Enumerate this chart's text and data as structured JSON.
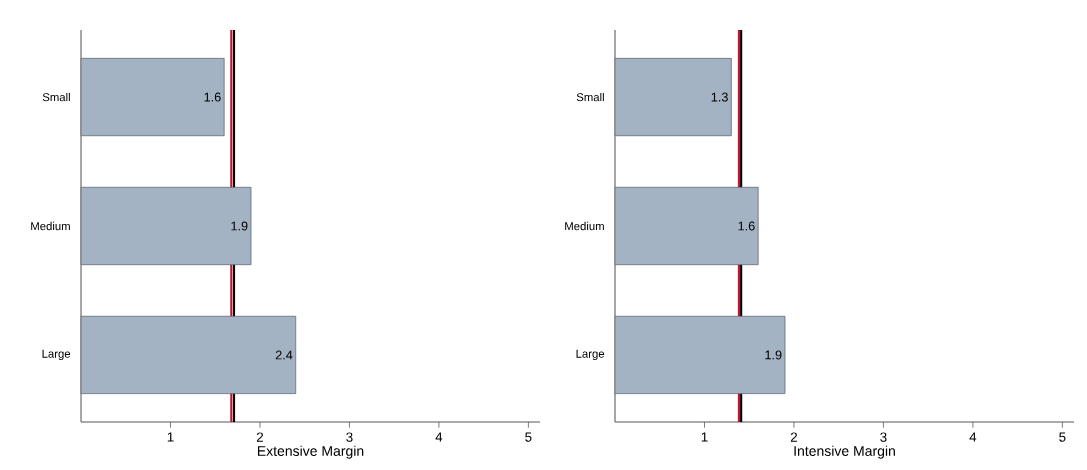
{
  "chart_data": [
    {
      "type": "bar",
      "orientation": "horizontal",
      "categories": [
        "Small",
        "Medium",
        "Large"
      ],
      "values": [
        1.6,
        1.9,
        2.4
      ],
      "color": "#a3b3c3",
      "data_labels": true,
      "xlabel": "Extensive Margin",
      "xlim": [
        0,
        5.13
      ],
      "xticks": [
        1,
        2,
        3,
        4,
        5
      ],
      "ref_lines": [
        {
          "axis": "x",
          "value": 1.68,
          "color": "#c8102e"
        },
        {
          "axis": "x",
          "value": 1.71,
          "color": "#000000"
        }
      ]
    },
    {
      "type": "bar",
      "orientation": "horizontal",
      "categories": [
        "Small",
        "Medium",
        "Large"
      ],
      "values": [
        1.3,
        1.6,
        1.9
      ],
      "color": "#a3b3c3",
      "data_labels": true,
      "xlabel": "Intensive Margin",
      "xlim": [
        0,
        5.13
      ],
      "xticks": [
        1,
        2,
        3,
        4,
        5
      ],
      "ref_lines": [
        {
          "axis": "x",
          "value": 1.385,
          "color": "#c8102e"
        },
        {
          "axis": "x",
          "value": 1.41,
          "color": "#000000"
        }
      ]
    }
  ]
}
